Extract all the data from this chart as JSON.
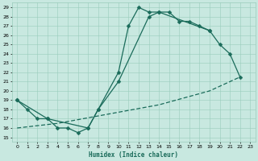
{
  "xlabel": "Humidex (Indice chaleur)",
  "xlim": [
    -0.5,
    23.5
  ],
  "ylim": [
    14.5,
    29.5
  ],
  "xticks": [
    0,
    1,
    2,
    3,
    4,
    5,
    6,
    7,
    8,
    9,
    10,
    11,
    12,
    13,
    14,
    15,
    16,
    17,
    18,
    19,
    20,
    21,
    22,
    23
  ],
  "yticks": [
    15,
    16,
    17,
    18,
    19,
    20,
    21,
    22,
    23,
    24,
    25,
    26,
    27,
    28,
    29
  ],
  "bg_color": "#c8e8e0",
  "grid_color": "#99ccbb",
  "line_color": "#1a6b5a",
  "curve1_x": [
    0,
    1,
    2,
    3,
    4,
    5,
    6,
    7,
    8,
    10,
    11,
    12,
    13,
    14,
    15,
    16,
    17,
    18,
    19
  ],
  "curve1_y": [
    19,
    18,
    17,
    17,
    16,
    16,
    15.5,
    16,
    18,
    22,
    27,
    29,
    28.5,
    28.5,
    28.5,
    27.5,
    27.5,
    27,
    26.5
  ],
  "curve2_x": [
    0,
    3,
    7,
    8,
    10,
    13,
    14,
    19,
    20,
    21,
    22
  ],
  "curve2_y": [
    19,
    17,
    16,
    18,
    21,
    28,
    28.5,
    26.5,
    25,
    24,
    21.5
  ],
  "curve3_x": [
    0,
    4,
    9,
    14,
    19,
    22
  ],
  "curve3_y": [
    16,
    16.5,
    17.5,
    18.5,
    20,
    21.5
  ],
  "markersize": 2.5,
  "linewidth": 0.9
}
